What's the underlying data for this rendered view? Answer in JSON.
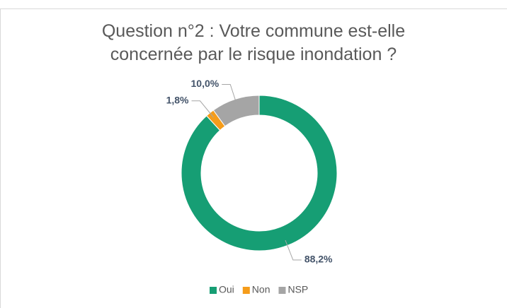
{
  "chart_data": {
    "type": "donut",
    "title": "Question n°2 : Votre commune est-elle concernée par le risque inondation ?",
    "categories": [
      "Oui",
      "Non",
      "NSP"
    ],
    "values": [
      88.2,
      1.8,
      10.0
    ],
    "value_labels": [
      "88,2%",
      "1,8%",
      "10,0%"
    ],
    "colors": [
      "#169e74",
      "#f59c1a",
      "#a5a5a5"
    ],
    "legend": "bottom"
  }
}
